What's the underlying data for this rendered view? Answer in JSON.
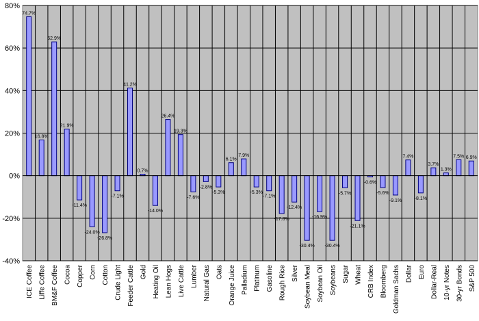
{
  "colors": {
    "plot_bg": "#c0c0c0",
    "bar_fill": "#9999ff",
    "bar_stroke": "#000080",
    "grid": "#000000"
  },
  "chart_data": {
    "type": "bar",
    "title": "",
    "xlabel": "",
    "ylabel": "",
    "ylim": [
      -40,
      80
    ],
    "yticks": [
      -40,
      -20,
      0,
      20,
      40,
      60,
      80
    ],
    "ytick_labels": [
      "-40%",
      "-20%",
      "0%",
      "20%",
      "40%",
      "60%",
      "80%"
    ],
    "grid": true,
    "legend": false,
    "categories": [
      "ICE Coffee",
      "Liffe Coffee",
      "BM&F Coffee",
      "Cocoa",
      "Copper",
      "Corn",
      "Cotton",
      "Crude Light",
      "Feeder Cattle",
      "Gold",
      "Heating Oil",
      "Lean Hogs",
      "Live Cattle",
      "Lumber",
      "Natural Gas",
      "Oats",
      "Orange Juice",
      "Palladium",
      "Platinum",
      "Gasoline",
      "Rough Rice",
      "Silver",
      "Soybean Meal",
      "Soybean Oil",
      "Soybeans",
      "Sugar",
      "Wheat",
      "CRB Index",
      "Bloomberg",
      "Goldman Sachs",
      "Dollar",
      "Euro",
      "Dollar-Real",
      "10-yr Notes",
      "30-yr Bonds",
      "S&P 500"
    ],
    "values": [
      74.7,
      16.8,
      62.9,
      21.9,
      -11.4,
      -24.0,
      -26.8,
      -7.1,
      41.2,
      0.7,
      -14.0,
      26.4,
      19.3,
      -7.6,
      -2.8,
      -5.3,
      6.1,
      7.9,
      -5.3,
      -7.1,
      -17.8,
      -12.4,
      -30.4,
      -16.9,
      -30.4,
      -5.7,
      -21.1,
      -0.6,
      -5.6,
      -9.1,
      7.4,
      -8.1,
      3.7,
      1.3,
      7.5,
      6.9
    ],
    "value_labels": [
      "74.7%",
      "16.8%",
      "62.9%",
      "21.9%",
      "-11.4%",
      "-24.0%",
      "-26.8%",
      "-7.1%",
      "41.2%",
      "0.7%",
      "-14.0%",
      "26.4%",
      "19.3%",
      "-7.6%",
      "-2.8%",
      "-5.3%",
      "6.1%",
      "7.9%",
      "-5.3%",
      "-7.1%",
      "-17.8%",
      "-12.4%",
      "-30.4%",
      "-16.9%",
      "-30.4%",
      "-5.7%",
      "-21.1%",
      "-0.6%",
      "-5.6%",
      "-9.1%",
      "7.4%",
      "-8.1%",
      "3.7%",
      "1.3%",
      "7.5%",
      "6.9%"
    ]
  }
}
